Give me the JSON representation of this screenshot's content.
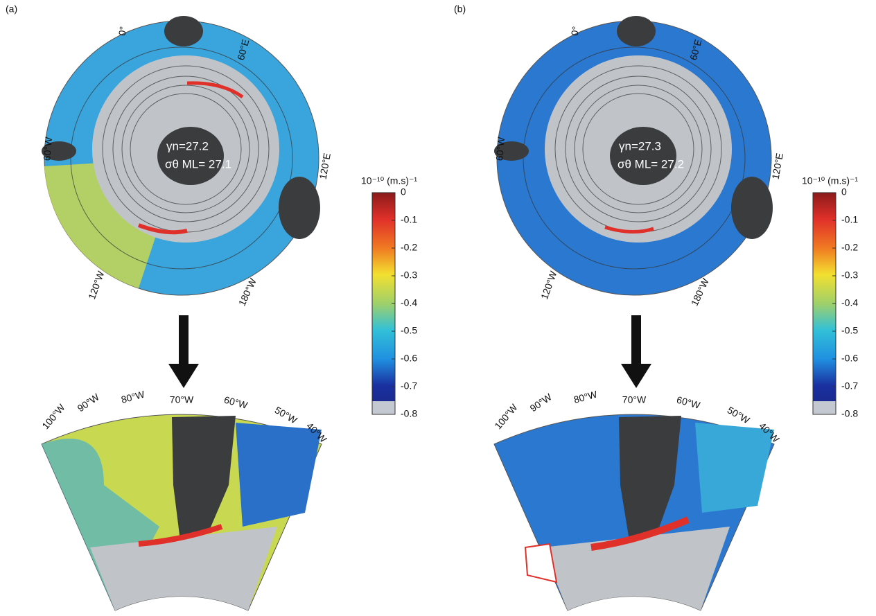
{
  "panels": [
    {
      "label": "(a)",
      "map_labels": [
        "0°",
        "60°E",
        "60°W",
        "120°E",
        "120°W",
        "180°W"
      ],
      "annotations": [
        "γn=27.2",
        "σθ ML= 27.1"
      ],
      "sector_labels": [
        "100°W",
        "90°W",
        "80°W",
        "70°W",
        "60°W",
        "50°W",
        "40°W"
      ],
      "colorbar": {
        "unit": "10⁻¹⁰ (m.s)⁻¹",
        "lim": [
          -0.8,
          0
        ],
        "ticks": [
          0,
          -0.1,
          -0.2,
          -0.3,
          -0.4,
          -0.5,
          -0.6,
          -0.7,
          -0.8
        ]
      }
    },
    {
      "label": "(b)",
      "map_labels": [
        "0°",
        "60°E",
        "60°W",
        "120°E",
        "120°W",
        "180°W"
      ],
      "annotations": [
        "γn=27.3",
        "σθ ML= 27.2"
      ],
      "sector_labels": [
        "100°W",
        "90°W",
        "80°W",
        "70°W",
        "60°W",
        "50°W",
        "40°W"
      ],
      "colorbar": {
        "unit": "10⁻¹⁰ (m.s)⁻¹",
        "lim": [
          -0.8,
          0
        ],
        "ticks": [
          0,
          -0.1,
          -0.2,
          -0.3,
          -0.4,
          -0.5,
          -0.6,
          -0.7,
          -0.8
        ]
      }
    }
  ]
}
